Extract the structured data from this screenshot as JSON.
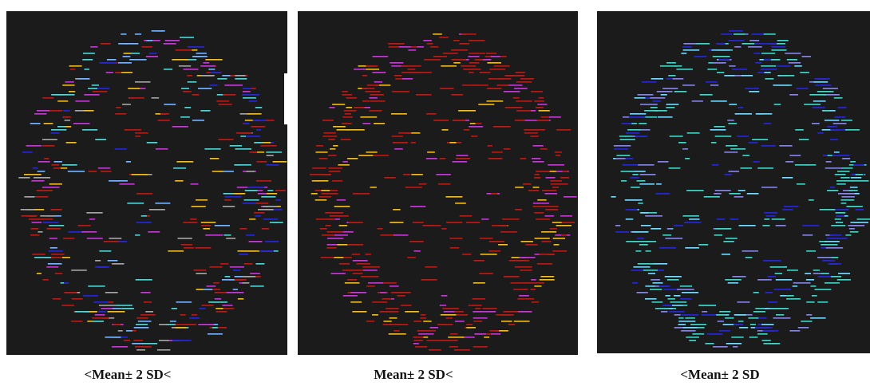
{
  "figure": {
    "panels": [
      {
        "caption": "<Mean± 2 SD<"
      },
      {
        "caption": "Mean± 2 SD<"
      },
      {
        "caption": "<Mean± 2 SD"
      }
    ]
  }
}
